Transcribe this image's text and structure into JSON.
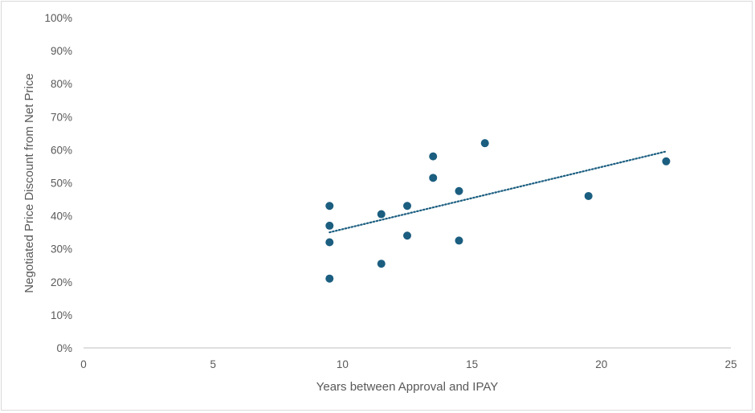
{
  "chart_data": {
    "type": "scatter",
    "title": "",
    "xlabel": "Years between Approval and IPAY",
    "ylabel": "Negotiated Price Discount from Net Price",
    "xlim": [
      0,
      25
    ],
    "ylim": [
      0,
      1
    ],
    "x_ticks": [
      0,
      5,
      10,
      15,
      20,
      25
    ],
    "x_tick_labels": [
      "0",
      "5",
      "10",
      "15",
      "20",
      "25"
    ],
    "y_ticks": [
      0,
      0.1,
      0.2,
      0.3,
      0.4,
      0.5,
      0.6,
      0.7,
      0.8,
      0.9,
      1.0
    ],
    "y_tick_labels": [
      "0%",
      "10%",
      "20%",
      "30%",
      "40%",
      "50%",
      "60%",
      "70%",
      "80%",
      "90%",
      "100%"
    ],
    "grid": false,
    "marker_color": "#1b5e80",
    "series": [
      {
        "x": [
          9.5,
          9.5,
          9.5,
          9.5,
          11.5,
          11.5,
          12.5,
          12.5,
          13.5,
          13.5,
          14.5,
          14.5,
          15.5,
          19.5,
          22.5
        ],
        "y": [
          0.43,
          0.37,
          0.32,
          0.21,
          0.405,
          0.255,
          0.43,
          0.34,
          0.58,
          0.515,
          0.475,
          0.325,
          0.62,
          0.46,
          0.565
        ]
      }
    ],
    "trendline": {
      "type": "linear",
      "style": "dotted",
      "color": "#1b5e80",
      "x": [
        9.5,
        22.5
      ],
      "y": [
        0.35,
        0.595
      ]
    }
  }
}
